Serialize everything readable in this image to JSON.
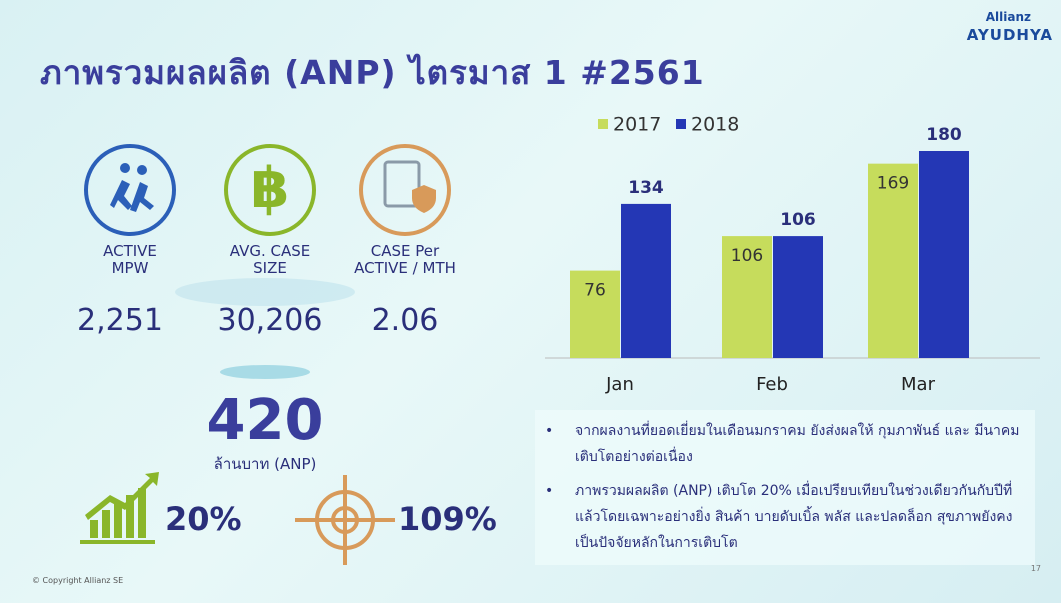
{
  "header": {
    "title": "ภาพรวมผลผลิต (ANP) ไตรมาส 1 #2561",
    "logo": [
      "Allianz",
      "AYUDHYA"
    ]
  },
  "metrics": [
    {
      "label_lines": [
        "ACTIVE",
        "MPW"
      ],
      "value": "2,251"
    },
    {
      "label_lines": [
        "AVG. CASE",
        "SIZE"
      ],
      "value": "30,206"
    },
    {
      "label_lines": [
        "CASE Per",
        "ACTIVE / MTH"
      ],
      "value": "2.06"
    }
  ],
  "anp": {
    "value": "420",
    "unit": "ล้านบาท (ANP)"
  },
  "growth": "20%",
  "target": "109%",
  "notes": [
    "จากผลงานที่ยอดเยี่ยมในเดือนมกราคม ยังส่งผลให้ กุมภาพันธ์ และ มีนาคม เติบโตอย่างต่อเนื่อง",
    "ภาพรวมผลผลิต (ANP) เติบโต 20% เมื่อเปรียบเทียบในช่วงเดียวกันกับปีที่แล้วโดยเฉพาะอย่างยิ่ง สินค้า บายดับเบิ้ล พลัส และปลดล็อก สุขภาพยังคงเป็นปัจจัยหลักในการเติบโต"
  ],
  "footer": {
    "copyright": "© Copyright Allianz SE",
    "page": "17"
  },
  "chart_data": {
    "type": "bar",
    "categories": [
      "Jan",
      "Feb",
      "Mar"
    ],
    "series": [
      {
        "name": "2017",
        "color": "#c6dc5c",
        "values": [
          76,
          106,
          169
        ]
      },
      {
        "name": "2018",
        "color": "#2437b5",
        "values": [
          134,
          106,
          180
        ]
      }
    ]
  }
}
